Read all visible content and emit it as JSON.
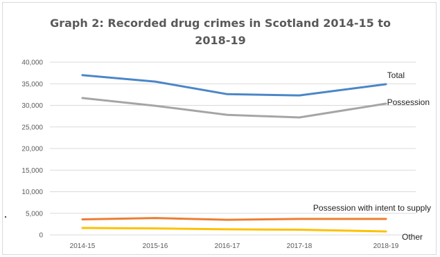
{
  "chart_data": {
    "type": "line",
    "title": "Graph 2: Recorded drug crimes in Scotland 2014-15 to",
    "title_line2": "2018-19",
    "xlabel": "",
    "ylabel": "",
    "categories": [
      "2014-15",
      "2015-16",
      "2016-17",
      "2017-18",
      "2018-19"
    ],
    "ylim": [
      0,
      40000
    ],
    "yticks": [
      "0",
      "5,000",
      "10,000",
      "15,000",
      "20,000",
      "25,000",
      "30,000",
      "35,000",
      "40,000"
    ],
    "grid": true,
    "legend": "inline-labels",
    "series": [
      {
        "name": "Total",
        "color": "#4a86c8",
        "values": [
          37000,
          35500,
          32600,
          32300,
          34900
        ]
      },
      {
        "name": "Possession",
        "color": "#a5a5a5",
        "values": [
          31700,
          29900,
          27800,
          27200,
          30400
        ]
      },
      {
        "name": "Possession with intent to supply",
        "color": "#ed7d31",
        "values": [
          3600,
          3900,
          3500,
          3700,
          3700
        ]
      },
      {
        "name": "Other",
        "color": "#ffc000",
        "values": [
          1600,
          1500,
          1300,
          1200,
          800
        ]
      }
    ]
  }
}
